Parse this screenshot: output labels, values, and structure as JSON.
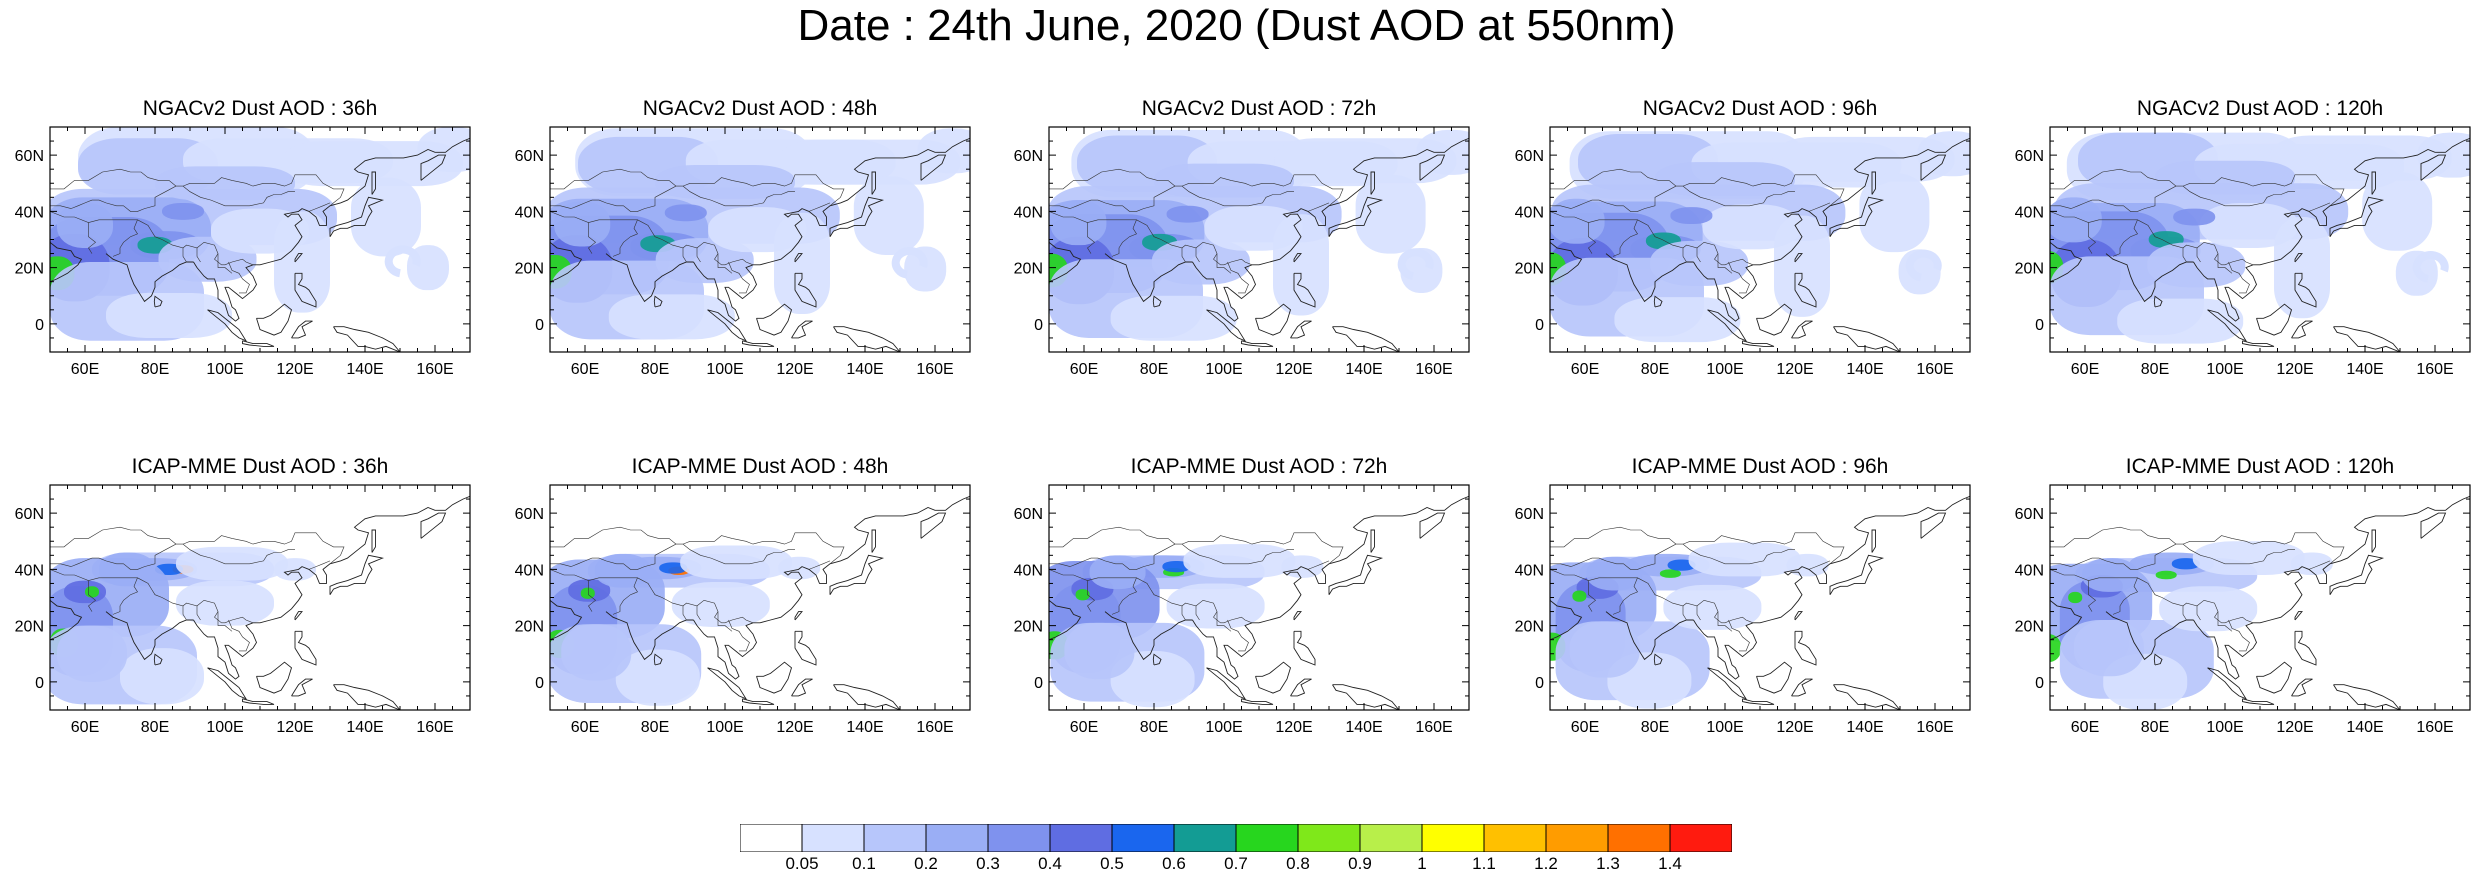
{
  "title": "Date : 24th June, 2020 (Dust AOD at 550nm)",
  "axes": {
    "lon_ticks": [
      "60E",
      "80E",
      "100E",
      "120E",
      "140E",
      "160E"
    ],
    "lat_ticks": [
      "60N",
      "40N",
      "20N",
      "0"
    ],
    "lon_range": [
      50,
      170
    ],
    "lat_range": [
      -10,
      70
    ]
  },
  "panels": [
    {
      "id": "ngac-36",
      "label": "NGACv2 Dust AOD : 36h"
    },
    {
      "id": "ngac-48",
      "label": "NGACv2 Dust AOD : 48h"
    },
    {
      "id": "ngac-72",
      "label": "NGACv2 Dust AOD : 72h"
    },
    {
      "id": "ngac-96",
      "label": "NGACv2 Dust AOD : 96h"
    },
    {
      "id": "ngac-120",
      "label": "NGACv2 Dust AOD : 120h"
    },
    {
      "id": "icap-36",
      "label": "ICAP-MME Dust AOD : 36h"
    },
    {
      "id": "icap-48",
      "label": "ICAP-MME Dust AOD : 48h"
    },
    {
      "id": "icap-72",
      "label": "ICAP-MME Dust AOD : 72h"
    },
    {
      "id": "icap-96",
      "label": "ICAP-MME Dust AOD : 96h"
    },
    {
      "id": "icap-120",
      "label": "ICAP-MME Dust AOD : 120h"
    }
  ],
  "colorbar": {
    "labels": [
      "0.05",
      "0.1",
      "0.2",
      "0.3",
      "0.4",
      "0.5",
      "0.6",
      "0.7",
      "0.8",
      "0.9",
      "1",
      "1.1",
      "1.2",
      "1.3",
      "1.4"
    ],
    "colors": [
      "#ffffff",
      "#d7e1ff",
      "#b7c6fb",
      "#9aaef5",
      "#7f92ee",
      "#5f6de2",
      "#1a66ee",
      "#139c94",
      "#27d61e",
      "#7fe81a",
      "#b8ef4a",
      "#ffff00",
      "#ffc000",
      "#ff9c00",
      "#ff7000",
      "#ff1b0f"
    ]
  }
}
